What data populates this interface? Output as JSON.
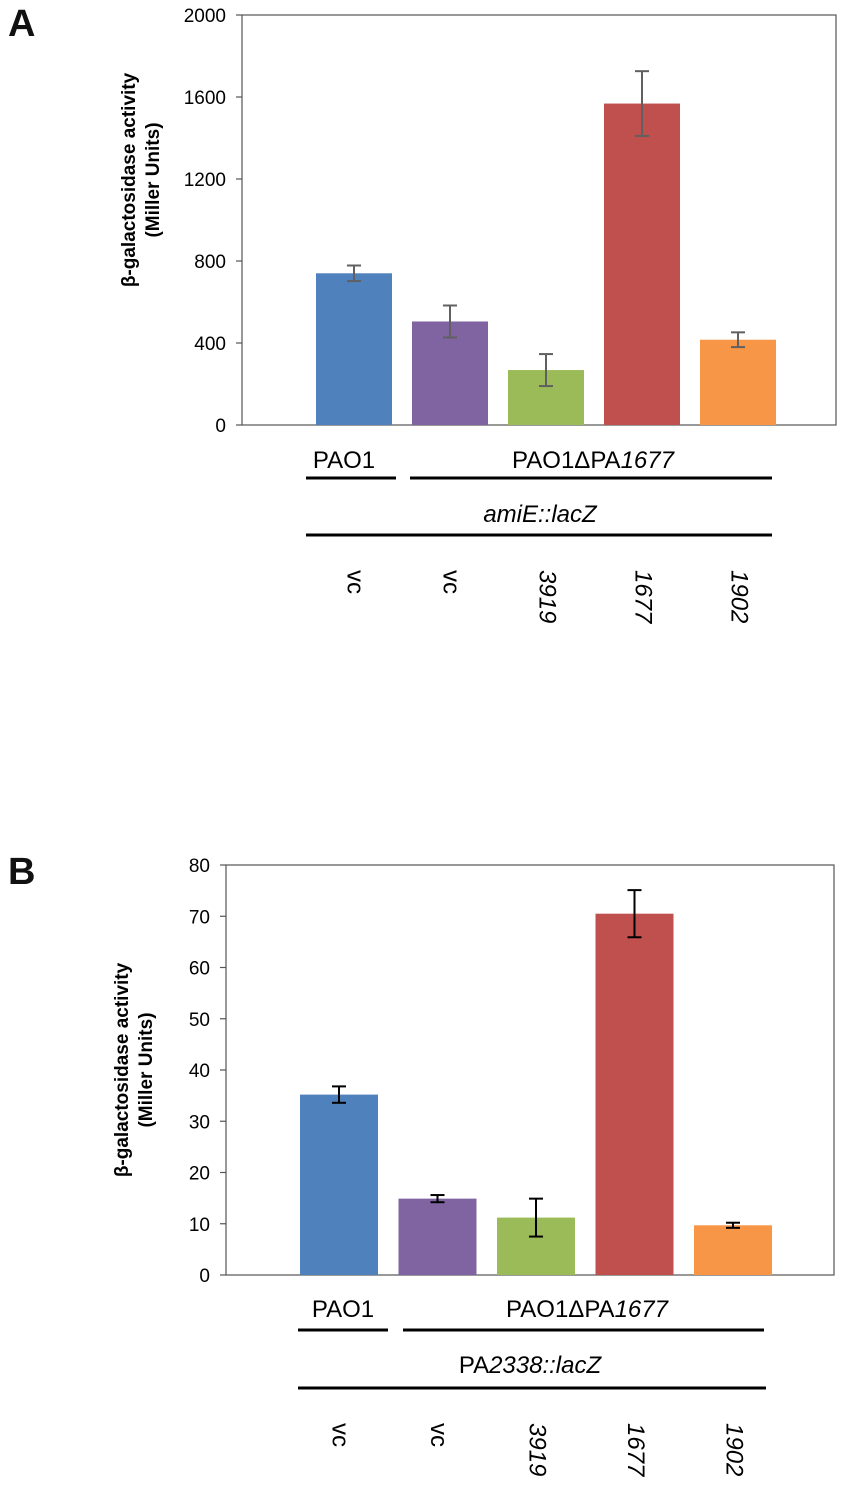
{
  "chart_data": [
    {
      "type": "bar",
      "panel_label": "A",
      "ylabel": [
        "β-galactosidase activity",
        "(Miller Units)"
      ],
      "ylim": [
        0,
        2000
      ],
      "yticks": [
        0,
        400,
        800,
        1200,
        1600,
        2000
      ],
      "grid": false,
      "categories": [
        "vc",
        "vc",
        "3919",
        "1677",
        "1902"
      ],
      "category_italic": [
        false,
        false,
        true,
        true,
        true
      ],
      "values": [
        740,
        505,
        268,
        1568,
        416
      ],
      "errors": [
        38,
        78,
        78,
        158,
        36
      ],
      "colors": [
        "#4f81bd",
        "#8064a2",
        "#9bbb59",
        "#c0504d",
        "#f79646"
      ],
      "error_color": "#606060",
      "group_labels": {
        "left": {
          "text": "PAO1"
        },
        "right": {
          "prefix": "PAO1ΔPA",
          "italic": "1677"
        },
        "reporter": {
          "prefix": "",
          "italic": "amiE::lacZ"
        }
      }
    },
    {
      "type": "bar",
      "panel_label": "B",
      "ylabel": [
        "β-galactosidase activity",
        "(Miller Units)"
      ],
      "ylim": [
        0,
        80
      ],
      "yticks": [
        0,
        10,
        20,
        30,
        40,
        50,
        60,
        70,
        80
      ],
      "grid": false,
      "categories": [
        "vc",
        "vc",
        "3919",
        "1677",
        "1902"
      ],
      "category_italic": [
        false,
        false,
        true,
        true,
        true
      ],
      "values": [
        35.2,
        14.9,
        11.2,
        70.5,
        9.7
      ],
      "errors": [
        1.6,
        0.7,
        3.7,
        4.6,
        0.5
      ],
      "colors": [
        "#4f81bd",
        "#8064a2",
        "#9bbb59",
        "#c0504d",
        "#f79646"
      ],
      "error_color": "#000000",
      "group_labels": {
        "left": {
          "text": "PAO1"
        },
        "right": {
          "prefix": "PAO1ΔPA",
          "italic": "1677"
        },
        "reporter": {
          "prefix": "PA",
          "italic": "2338::lacZ"
        }
      }
    }
  ]
}
